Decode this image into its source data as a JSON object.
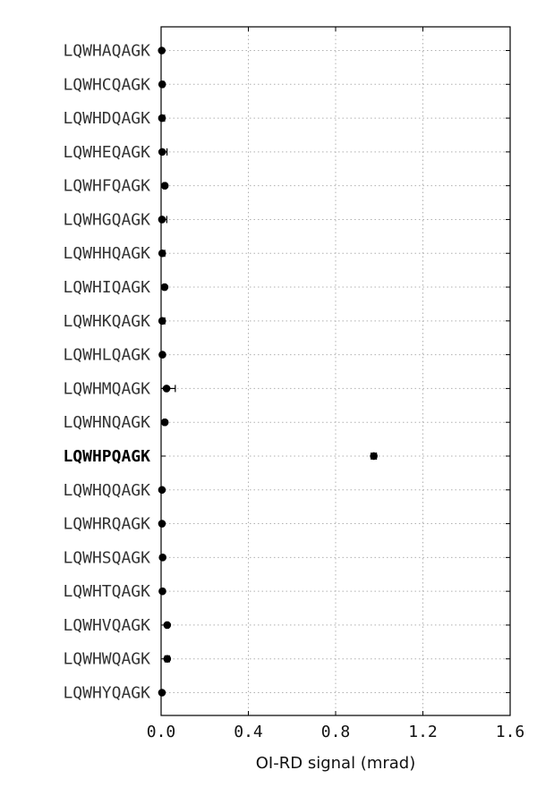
{
  "chart_data": {
    "type": "scatter",
    "orientation": "horizontal",
    "xlabel": "OI-RD signal (mrad)",
    "ylabel": "",
    "xlim": [
      0,
      1.6
    ],
    "xticks": [
      0.0,
      0.4,
      0.8,
      1.2,
      1.6
    ],
    "xtick_labels": [
      "0.0",
      "0.4",
      "0.8",
      "1.2",
      "1.6"
    ],
    "grid": true,
    "highlight_category": "LQWHPQAGK",
    "categories": [
      "LQWHAQAGK",
      "LQWHCQAGK",
      "LQWHDQAGK",
      "LQWHEQAGK",
      "LQWHFQAGK",
      "LQWHGQAGK",
      "LQWHHQAGK",
      "LQWHIQAGK",
      "LQWHKQAGK",
      "LQWHLQAGK",
      "LQWHMQAGK",
      "LQWHNQAGK",
      "LQWHPQAGK",
      "LQWHQQAGK",
      "LQWHRQAGK",
      "LQWHSQAGK",
      "LQWHTQAGK",
      "LQWHVQAGK",
      "LQWHWQAGK",
      "LQWHYQAGK"
    ],
    "values": [
      0.003,
      0.005,
      0.004,
      0.005,
      0.017,
      0.004,
      0.005,
      0.016,
      0.005,
      0.006,
      0.025,
      0.017,
      0.975,
      0.004,
      0.004,
      0.007,
      0.006,
      0.028,
      0.028,
      0.004
    ],
    "errors": [
      0.003,
      0.008,
      0.012,
      0.022,
      0.006,
      0.022,
      0.012,
      0.006,
      0.012,
      0.005,
      0.04,
      0.006,
      0.012,
      0.004,
      0.004,
      0.004,
      0.006,
      0.006,
      0.01,
      0.004
    ],
    "marker_color": "#000000",
    "grid_color": "#b0b0b0"
  }
}
